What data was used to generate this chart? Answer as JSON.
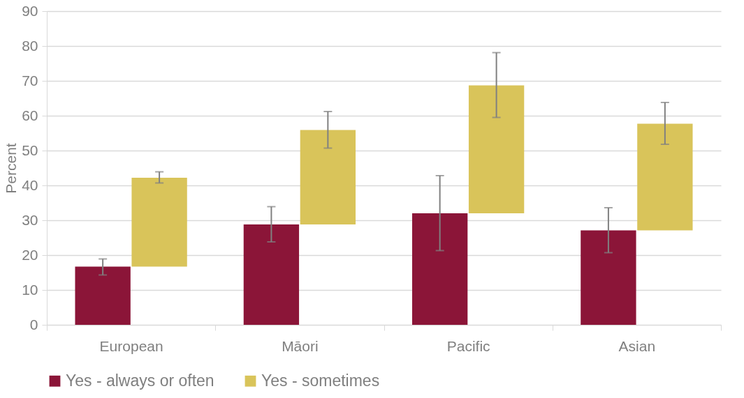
{
  "chart_data": {
    "type": "bar",
    "ylabel": "Percent",
    "categories": [
      "European",
      "Māori",
      "Pacific",
      "Asian"
    ],
    "series": [
      {
        "name": "Yes - always or often",
        "color": "#8b1538",
        "values": [
          16.7,
          28.8,
          32.0,
          27.1
        ],
        "errors": [
          [
            14.3,
            18.9
          ],
          [
            23.8,
            33.9
          ],
          [
            21.3,
            42.8
          ],
          [
            20.7,
            33.6
          ]
        ]
      },
      {
        "name": "Yes - sometimes",
        "color": "#d9c45a",
        "base": [
          16.7,
          28.8,
          32.0,
          27.1
        ],
        "values": [
          25.5,
          27.1,
          36.7,
          30.6
        ],
        "errors": [
          [
            40.7,
            43.9
          ],
          [
            50.7,
            61.2
          ],
          [
            59.5,
            78.1
          ],
          [
            51.8,
            63.8
          ]
        ]
      }
    ],
    "ylim": [
      0,
      90
    ],
    "yticks": [
      0,
      10,
      20,
      30,
      40,
      50,
      60,
      70,
      80,
      90
    ],
    "grid": "y",
    "legend": "bottom"
  }
}
